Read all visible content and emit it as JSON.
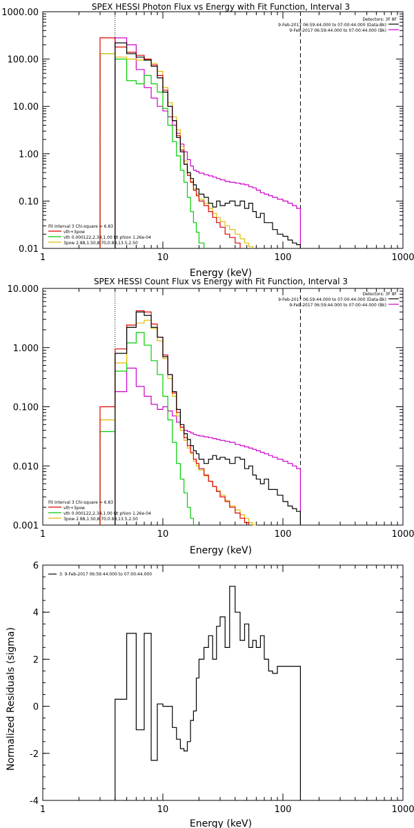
{
  "chart_data": [
    {
      "type": "line",
      "title": "SPEX HESSI Photon Flux vs Energy with Fit Function, Interval 3",
      "xlabel": "Energy (keV)",
      "ylabel": "",
      "xscale": "log",
      "yscale": "log",
      "xlim": [
        1,
        1000
      ],
      "ylim": [
        0.01,
        1000
      ],
      "x_ticks": [
        "1",
        "10",
        "100",
        "1000"
      ],
      "y_ticks": [
        "0.01",
        "0.10",
        "1.00",
        "10.00",
        "100.00",
        "1000.00"
      ],
      "header": {
        "detectors": "Detectors: 3F 8F",
        "line1": "9-Feb-2017 06:59:44.000 to 07:00:44.000 (Data-Bk)",
        "line2": "9-Feb-2017 06:59:44.000 to 07:00:44.000 (Bk)"
      },
      "fit_legend": {
        "heading": "Fit Interval 3   Chi-square = 6.83",
        "entries": [
          "vth+3pow",
          "vth 0.000122,2.34,1.00  Nt phion 1.26e-04",
          "3pow 2.88,1.50,8.70,0.89,13.5,2.50"
        ]
      },
      "vlines": {
        "dotted": 4,
        "dashed": 140
      },
      "colors": {
        "data": "#000000",
        "total": "#dd0000",
        "thermal": "#00cc00",
        "powerlaw": "#ddbb00",
        "background": "#cc00cc"
      },
      "bin_edges": [
        3,
        4,
        5,
        6,
        7,
        8,
        9,
        10,
        11,
        12,
        13,
        14,
        15,
        16,
        17,
        18,
        19,
        20,
        22,
        24,
        26,
        28,
        30,
        33,
        36,
        40,
        44,
        48,
        52,
        56,
        60,
        65,
        70,
        76,
        82,
        90,
        100,
        110,
        120,
        130,
        140
      ],
      "series": [
        {
          "key": "data",
          "values": [
            null,
            220,
            130,
            110,
            95,
            70,
            40,
            20,
            10,
            5,
            2.2,
            1.1,
            0.6,
            0.4,
            0.3,
            0.22,
            0.18,
            0.14,
            0.12,
            0.09,
            0.075,
            0.1,
            0.08,
            0.09,
            0.1,
            0.08,
            0.1,
            0.07,
            0.09,
            0.06,
            0.045,
            0.055,
            0.035,
            0.035,
            0.025,
            0.02,
            0.018,
            0.015,
            0.013,
            0.012
          ]
        },
        {
          "key": "total",
          "values": [
            280,
            180,
            140,
            120,
            100,
            75,
            45,
            22,
            10,
            5,
            2.4,
            1.2,
            0.6,
            0.35,
            0.25,
            0.17,
            0.13,
            0.1,
            0.08,
            0.06,
            0.045,
            0.035,
            0.028,
            0.02,
            0.017,
            0.013,
            null,
            null,
            null,
            null,
            null,
            null,
            null,
            null,
            null,
            null,
            null,
            null,
            null,
            null
          ]
        },
        {
          "key": "thermal",
          "values": [
            130,
            100,
            35,
            30,
            45,
            30,
            20,
            9,
            4,
            1.8,
            0.9,
            0.45,
            0.25,
            0.12,
            0.06,
            0.035,
            0.022,
            0.013,
            null,
            null,
            null,
            null,
            null,
            null,
            null,
            null,
            null,
            null,
            null,
            null,
            null,
            null,
            null,
            null,
            null,
            null,
            null,
            null,
            null,
            null
          ]
        },
        {
          "key": "powerlaw",
          "values": [
            130,
            110,
            100,
            95,
            100,
            80,
            55,
            25,
            12,
            6,
            3.2,
            1.4,
            0.7,
            0.4,
            0.26,
            0.18,
            0.14,
            0.11,
            0.09,
            0.07,
            0.055,
            0.045,
            0.037,
            0.03,
            0.025,
            0.02,
            0.016,
            0.013,
            0.011,
            null,
            null,
            null,
            null,
            null,
            null,
            null,
            null,
            null,
            null,
            null
          ]
        },
        {
          "key": "background",
          "values": [
            null,
            280,
            200,
            60,
            25,
            15,
            10,
            8,
            6,
            4,
            2.7,
            1.6,
            1.1,
            0.75,
            0.55,
            0.45,
            0.42,
            0.39,
            0.36,
            0.34,
            0.32,
            0.3,
            0.28,
            0.26,
            0.25,
            0.24,
            0.23,
            0.22,
            0.2,
            0.19,
            0.17,
            0.15,
            0.14,
            0.13,
            0.12,
            0.11,
            0.1,
            0.09,
            0.08,
            0.07
          ]
        }
      ]
    },
    {
      "type": "line",
      "title": "SPEX HESSI Count Flux vs Energy with Fit Function, Interval 3",
      "xlabel": "Energy (keV)",
      "ylabel": "",
      "xscale": "log",
      "yscale": "log",
      "xlim": [
        1,
        1000
      ],
      "ylim": [
        0.001,
        10
      ],
      "x_ticks": [
        "1",
        "10",
        "100",
        "1000"
      ],
      "y_ticks": [
        "0.001",
        "0.010",
        "0.100",
        "1.000",
        "10.000"
      ],
      "header": {
        "detectors": "Detectors: 3F 8F",
        "line1": "9-Feb-2017 06:59:44.000 to 07:00:44.000 (Data-Bk)",
        "line2": "9-Feb-2017 06:59:44.000 to 07:00:44.000 (Bk)"
      },
      "fit_legend": {
        "heading": "Fit Interval 3   Chi-square = 6.83",
        "entries": [
          "vth+3pow",
          "vth 0.000122,2.34,1.00  Nt phion 1.26e-04",
          "3pow 2.88,1.50,8.70,0.89,13.5,2.50"
        ]
      },
      "vlines": {
        "dotted": 4,
        "dashed": 140
      },
      "colors": {
        "data": "#000000",
        "total": "#dd0000",
        "thermal": "#00cc00",
        "powerlaw": "#ddbb00",
        "background": "#cc00cc"
      },
      "bin_edges": [
        3,
        4,
        5,
        6,
        7,
        8,
        9,
        10,
        11,
        12,
        13,
        14,
        15,
        16,
        17,
        18,
        19,
        20,
        22,
        24,
        26,
        28,
        30,
        33,
        36,
        40,
        44,
        48,
        52,
        56,
        60,
        65,
        70,
        76,
        82,
        90,
        100,
        110,
        120,
        130,
        140
      ],
      "series": [
        {
          "key": "data",
          "values": [
            null,
            0.8,
            2.2,
            4,
            3.5,
            2.2,
            1.5,
            0.7,
            0.35,
            0.18,
            0.09,
            0.05,
            0.035,
            0.028,
            0.022,
            0.018,
            0.016,
            0.013,
            0.011,
            0.013,
            0.015,
            0.013,
            0.014,
            0.013,
            0.011,
            0.014,
            0.013,
            0.009,
            0.01,
            0.007,
            0.006,
            0.005,
            0.006,
            0.004,
            0.004,
            0.0032,
            0.0025,
            0.0021,
            0.0019,
            0.0017
          ]
        },
        {
          "key": "total",
          "values": [
            0.1,
            0.95,
            2.4,
            4.2,
            4.0,
            2.5,
            1.5,
            0.75,
            0.35,
            0.17,
            0.08,
            0.045,
            0.03,
            0.022,
            0.017,
            0.013,
            0.011,
            0.009,
            0.007,
            0.0055,
            0.0045,
            0.0037,
            0.003,
            0.0025,
            0.002,
            0.0016,
            0.0013,
            0.0011,
            null,
            null,
            null,
            null,
            null,
            null,
            null,
            null,
            null,
            null,
            null,
            null
          ]
        },
        {
          "key": "thermal",
          "values": [
            0.038,
            0.4,
            1.2,
            1.8,
            1.1,
            0.6,
            0.35,
            0.15,
            0.06,
            0.025,
            0.011,
            0.006,
            0.0035,
            0.002,
            0.0013,
            null,
            null,
            null,
            null,
            null,
            null,
            null,
            null,
            null,
            null,
            null,
            null,
            null,
            null,
            null,
            null,
            null,
            null,
            null,
            null,
            null,
            null,
            null,
            null,
            null
          ]
        },
        {
          "key": "powerlaw",
          "values": [
            0.06,
            0.55,
            2.2,
            2.6,
            2.9,
            2.1,
            1.3,
            0.65,
            0.3,
            0.15,
            0.07,
            0.04,
            0.027,
            0.02,
            0.016,
            0.012,
            0.01,
            0.0085,
            0.0068,
            0.0055,
            0.0045,
            0.0038,
            0.0032,
            0.0026,
            0.0021,
            0.0018,
            0.0015,
            0.0013,
            0.0011,
            0.001,
            null,
            null,
            null,
            null,
            null,
            null,
            null,
            null,
            null,
            null
          ]
        },
        {
          "key": "background",
          "values": [
            null,
            0.18,
            0.45,
            0.22,
            0.15,
            0.11,
            0.09,
            0.1,
            0.085,
            0.07,
            0.055,
            0.045,
            0.04,
            0.038,
            0.036,
            0.034,
            0.033,
            0.032,
            0.031,
            0.03,
            0.029,
            0.028,
            0.027,
            0.026,
            0.025,
            0.023,
            0.022,
            0.021,
            0.02,
            0.019,
            0.018,
            0.017,
            0.016,
            0.015,
            0.014,
            0.013,
            0.012,
            0.011,
            0.01,
            0.009
          ]
        }
      ]
    },
    {
      "type": "line",
      "title": "",
      "xlabel": "Energy (keV)",
      "ylabel": "Normalized Residuals (sigma)",
      "xscale": "log",
      "yscale": "linear",
      "xlim": [
        1,
        1000
      ],
      "ylim": [
        -4,
        6
      ],
      "x_ticks": [
        "1",
        "10",
        "100",
        "1000"
      ],
      "y_ticks": [
        "-4",
        "-2",
        "0",
        "2",
        "4",
        "6"
      ],
      "legend": "3.  9-Feb-2017 06:59:44.000 to 07:00:44.000",
      "bin_edges": [
        4,
        5,
        6,
        7,
        8,
        9,
        10,
        11,
        12,
        13,
        14,
        15,
        16,
        17,
        18,
        19,
        20,
        22,
        24,
        26,
        28,
        30,
        33,
        36,
        40,
        44,
        48,
        52,
        56,
        60,
        65,
        70,
        76,
        82,
        90,
        100,
        110,
        120,
        130,
        140
      ],
      "series": [
        {
          "key": "residuals",
          "values": [
            0.3,
            3.1,
            -1.0,
            3.1,
            -2.3,
            0.1,
            0.0,
            0.0,
            -0.9,
            -1.4,
            -1.8,
            -1.9,
            -1.5,
            -0.6,
            -0.2,
            1.2,
            2.0,
            2.5,
            3.0,
            2.0,
            3.4,
            3.8,
            2.5,
            5.1,
            4.0,
            2.8,
            3.5,
            2.5,
            2.8,
            2.5,
            3.0,
            2.0,
            1.5,
            1.4,
            1.7,
            1.7,
            1.7,
            1.7,
            1.7
          ]
        }
      ]
    }
  ]
}
